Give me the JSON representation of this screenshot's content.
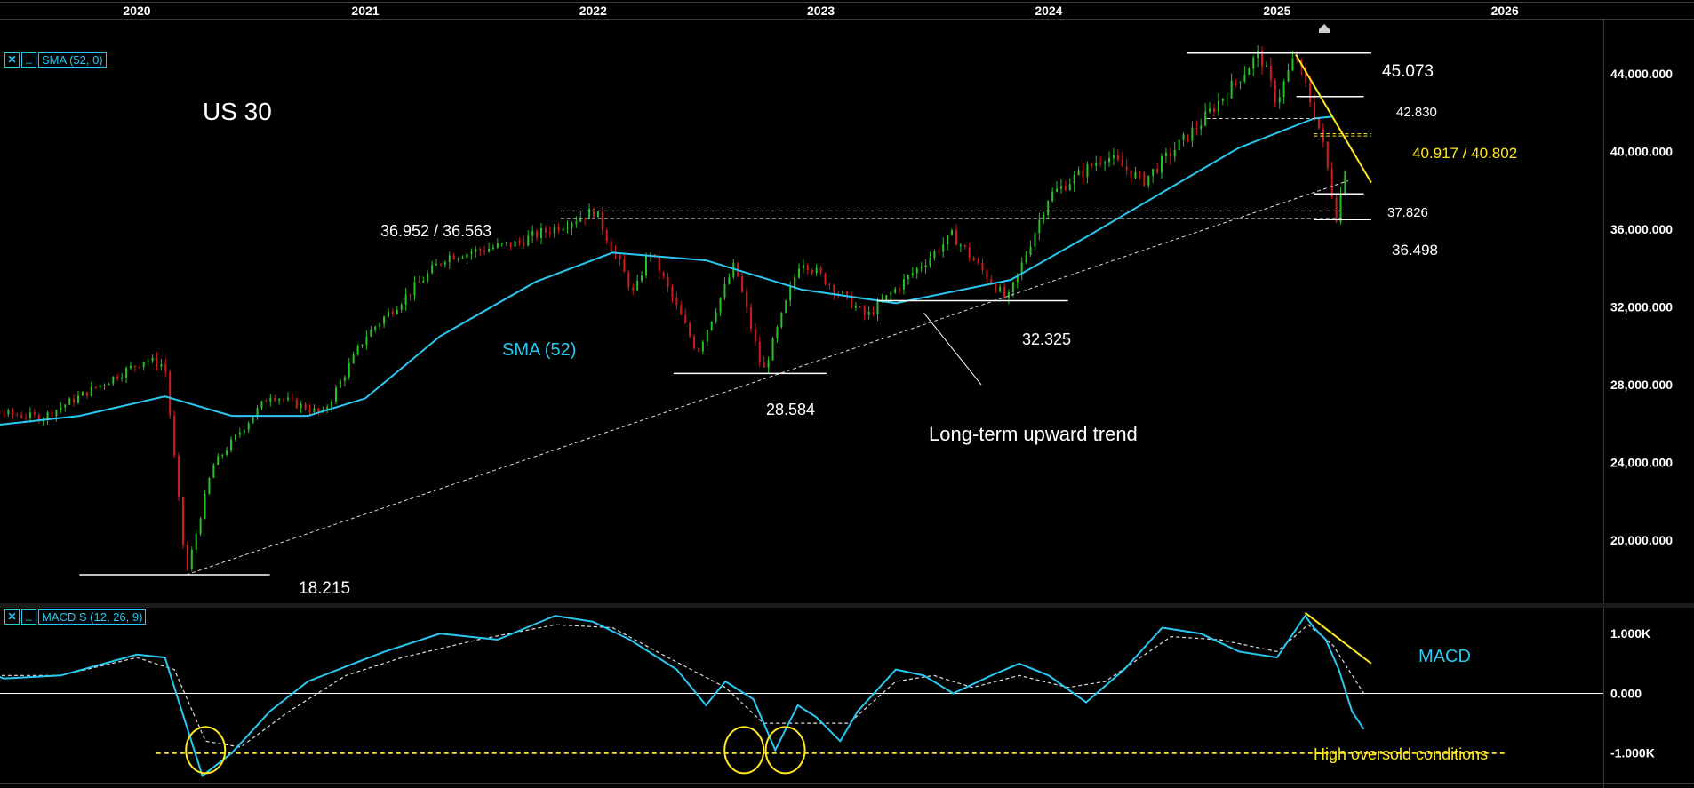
{
  "chart_data": [
    {
      "type": "candlestick",
      "title": "US 30",
      "indicator": "SMA (52, 0)",
      "sma_label": "SMA (52)",
      "x_ticks": [
        "2020",
        "2021",
        "2022",
        "2023",
        "2024",
        "2025",
        "2026"
      ],
      "y_ticks": [
        "44,000.000",
        "40,000.000",
        "36,000.000",
        "32,000.000",
        "28,000.000",
        "24,000.000",
        "20,000.000"
      ],
      "y_tick_values": [
        44000,
        40000,
        36000,
        32000,
        28000,
        24000,
        20000
      ],
      "ylim": [
        16800,
        46800
      ],
      "x_start": "2019-01-20",
      "anchor_points": [
        [
          "2019-01-20",
          27000
        ],
        [
          "2019-08-01",
          26300
        ],
        [
          "2020-01-15",
          29300
        ],
        [
          "2020-02-15",
          29000
        ],
        [
          "2020-03-20",
          18215
        ],
        [
          "2020-05-01",
          23800
        ],
        [
          "2020-08-01",
          27500
        ],
        [
          "2020-10-25",
          26500
        ],
        [
          "2021-01-01",
          30500
        ],
        [
          "2021-05-10",
          34600
        ],
        [
          "2021-09-01",
          35300
        ],
        [
          "2022-01-04",
          36952
        ],
        [
          "2022-03-08",
          32600
        ],
        [
          "2022-04-01",
          35000
        ],
        [
          "2022-06-17",
          29700
        ],
        [
          "2022-08-16",
          34200
        ],
        [
          "2022-09-30",
          28584
        ],
        [
          "2022-11-30",
          34500
        ],
        [
          "2023-03-15",
          31500
        ],
        [
          "2023-07-31",
          35700
        ],
        [
          "2023-10-27",
          32325
        ],
        [
          "2024-01-01",
          37700
        ],
        [
          "2024-04-01",
          39800
        ],
        [
          "2024-06-01",
          38500
        ],
        [
          "2024-09-01",
          41500
        ],
        [
          "2024-12-04",
          45073
        ],
        [
          "2024-12-31",
          42600
        ],
        [
          "2025-01-31",
          45000
        ],
        [
          "2025-03-13",
          40800
        ],
        [
          "2025-04-07",
          36498
        ],
        [
          "2025-04-25",
          40300
        ]
      ],
      "sma_points": [
        [
          "2019-01-20",
          25500
        ],
        [
          "2019-10-01",
          26400
        ],
        [
          "2020-02-15",
          27400
        ],
        [
          "2020-06-01",
          26400
        ],
        [
          "2020-10-01",
          26400
        ],
        [
          "2021-01-01",
          27300
        ],
        [
          "2021-05-01",
          30500
        ],
        [
          "2021-10-01",
          33300
        ],
        [
          "2022-02-01",
          34800
        ],
        [
          "2022-07-01",
          34400
        ],
        [
          "2022-12-01",
          32900
        ],
        [
          "2023-05-01",
          32200
        ],
        [
          "2023-11-01",
          33400
        ],
        [
          "2024-03-01",
          35600
        ],
        [
          "2024-07-01",
          37900
        ],
        [
          "2024-11-01",
          40200
        ],
        [
          "2025-03-01",
          41700
        ],
        [
          "2025-04-01",
          41800
        ]
      ],
      "levels": [
        {
          "label": "18.215",
          "value": 18215,
          "from": "2019-10-01",
          "to": "2020-08-01"
        },
        {
          "label": "28.584",
          "value": 28584,
          "from": "2022-05-10",
          "to": "2023-01-10"
        },
        {
          "label": "32.325",
          "value": 32325,
          "from": "2023-04-01",
          "to": "2024-02-01"
        },
        {
          "label": "45.073",
          "value": 45073,
          "from": "2024-08-10",
          "to": "2025-06-01"
        },
        {
          "label": "42.830",
          "value": 42830,
          "from": "2025-02-01",
          "to": "2025-05-20"
        },
        {
          "label": "37.826",
          "value": 37826,
          "from": "2025-03-01",
          "to": "2025-05-20"
        },
        {
          "label": "36.498",
          "value": 36498,
          "from": "2025-03-01",
          "to": "2025-06-01"
        }
      ],
      "dashed_levels": [
        {
          "value": 36952,
          "from": "2021-11-10",
          "to": "2025-04-15"
        },
        {
          "value": 36563,
          "from": "2021-11-10",
          "to": "2025-04-15"
        },
        {
          "value": 41700,
          "from": "2024-09-10",
          "to": "2025-03-10"
        }
      ],
      "yellow_dashed_levels": [
        {
          "value": 40917,
          "from": "2025-03-01",
          "to": "2025-06-01"
        },
        {
          "value": 40802,
          "from": "2025-03-01",
          "to": "2025-06-01"
        }
      ],
      "resistance_label": "36.952 / 36.563",
      "yellow_label": "40.917 / 40.802",
      "trendline": {
        "from": [
          "2020-03-20",
          18215
        ],
        "to": [
          "2025-04-25",
          38500
        ]
      },
      "downtrend": {
        "from": [
          "2025-01-31",
          45000
        ],
        "to": [
          "2025-06-01",
          38400
        ]
      },
      "trend_label": "Long-term upward trend",
      "trend_pointer": {
        "from": [
          "2023-09-15",
          28000
        ],
        "to": [
          "2023-06-15",
          31700
        ]
      }
    },
    {
      "type": "line",
      "indicator": "MACD S (12, 26, 9)",
      "series_label": "MACD",
      "y_ticks": [
        "1.000K",
        "0.000",
        "-1.000K"
      ],
      "y_tick_values": [
        1000,
        0,
        -1000
      ],
      "ylim": [
        -1480,
        1420
      ],
      "macd_points": [
        [
          "2019-01-20",
          400
        ],
        [
          "2019-04-01",
          550
        ],
        [
          "2019-06-01",
          250
        ],
        [
          "2019-09-01",
          300
        ],
        [
          "2020-01-01",
          650
        ],
        [
          "2020-02-15",
          600
        ],
        [
          "2020-03-10",
          -200
        ],
        [
          "2020-04-15",
          -1380
        ],
        [
          "2020-06-01",
          -1000
        ],
        [
          "2020-08-01",
          -300
        ],
        [
          "2020-10-01",
          200
        ],
        [
          "2020-12-01",
          450
        ],
        [
          "2021-02-01",
          700
        ],
        [
          "2021-05-01",
          1000
        ],
        [
          "2021-08-01",
          900
        ],
        [
          "2021-11-01",
          1300
        ],
        [
          "2022-01-01",
          1200
        ],
        [
          "2022-03-01",
          900
        ],
        [
          "2022-05-15",
          400
        ],
        [
          "2022-07-01",
          -200
        ],
        [
          "2022-08-01",
          200
        ],
        [
          "2022-09-15",
          -100
        ],
        [
          "2022-10-20",
          -950
        ],
        [
          "2022-11-25",
          -200
        ],
        [
          "2022-12-25",
          -400
        ],
        [
          "2023-02-01",
          -800
        ],
        [
          "2023-03-01",
          -300
        ],
        [
          "2023-05-01",
          400
        ],
        [
          "2023-06-15",
          300
        ],
        [
          "2023-08-01",
          0
        ],
        [
          "2023-10-01",
          300
        ],
        [
          "2023-11-15",
          500
        ],
        [
          "2024-01-01",
          300
        ],
        [
          "2024-03-01",
          -150
        ],
        [
          "2024-05-01",
          400
        ],
        [
          "2024-07-01",
          1100
        ],
        [
          "2024-09-01",
          1000
        ],
        [
          "2024-11-01",
          700
        ],
        [
          "2025-01-01",
          600
        ],
        [
          "2025-02-15",
          1300
        ],
        [
          "2025-03-01",
          1100
        ],
        [
          "2025-03-20",
          900
        ],
        [
          "2025-04-10",
          400
        ],
        [
          "2025-05-01",
          -300
        ],
        [
          "2025-05-20",
          -600
        ]
      ],
      "signal_points": [
        [
          "2019-01-20",
          350
        ],
        [
          "2019-06-01",
          300
        ],
        [
          "2019-09-01",
          300
        ],
        [
          "2020-01-01",
          600
        ],
        [
          "2020-03-01",
          400
        ],
        [
          "2020-04-20",
          -800
        ],
        [
          "2020-06-15",
          -900
        ],
        [
          "2020-09-01",
          -300
        ],
        [
          "2020-12-01",
          300
        ],
        [
          "2021-03-01",
          600
        ],
        [
          "2021-07-01",
          900
        ],
        [
          "2021-11-01",
          1150
        ],
        [
          "2022-02-01",
          1100
        ],
        [
          "2022-05-01",
          600
        ],
        [
          "2022-08-01",
          100
        ],
        [
          "2022-10-01",
          -500
        ],
        [
          "2022-12-01",
          -500
        ],
        [
          "2023-02-15",
          -500
        ],
        [
          "2023-05-01",
          200
        ],
        [
          "2023-07-01",
          300
        ],
        [
          "2023-09-01",
          100
        ],
        [
          "2023-11-15",
          300
        ],
        [
          "2024-02-01",
          100
        ],
        [
          "2024-04-01",
          200
        ],
        [
          "2024-07-15",
          950
        ],
        [
          "2024-10-01",
          900
        ],
        [
          "2025-01-01",
          700
        ],
        [
          "2025-02-20",
          1150
        ],
        [
          "2025-04-01",
          800
        ],
        [
          "2025-05-20",
          0
        ]
      ],
      "oversold_line": {
        "value": -1000,
        "from": "2020-02-01",
        "to": "2026-01-01"
      },
      "oversold_label": "High oversold conditions",
      "macd_trendline": {
        "from": [
          "2025-02-15",
          1350
        ],
        "to": [
          "2025-06-01",
          500
        ]
      },
      "circles": [
        {
          "date": "2020-04-20",
          "value": -950
        },
        {
          "date": "2022-08-31",
          "value": -950
        },
        {
          "date": "2022-11-05",
          "value": -950
        }
      ]
    }
  ]
}
